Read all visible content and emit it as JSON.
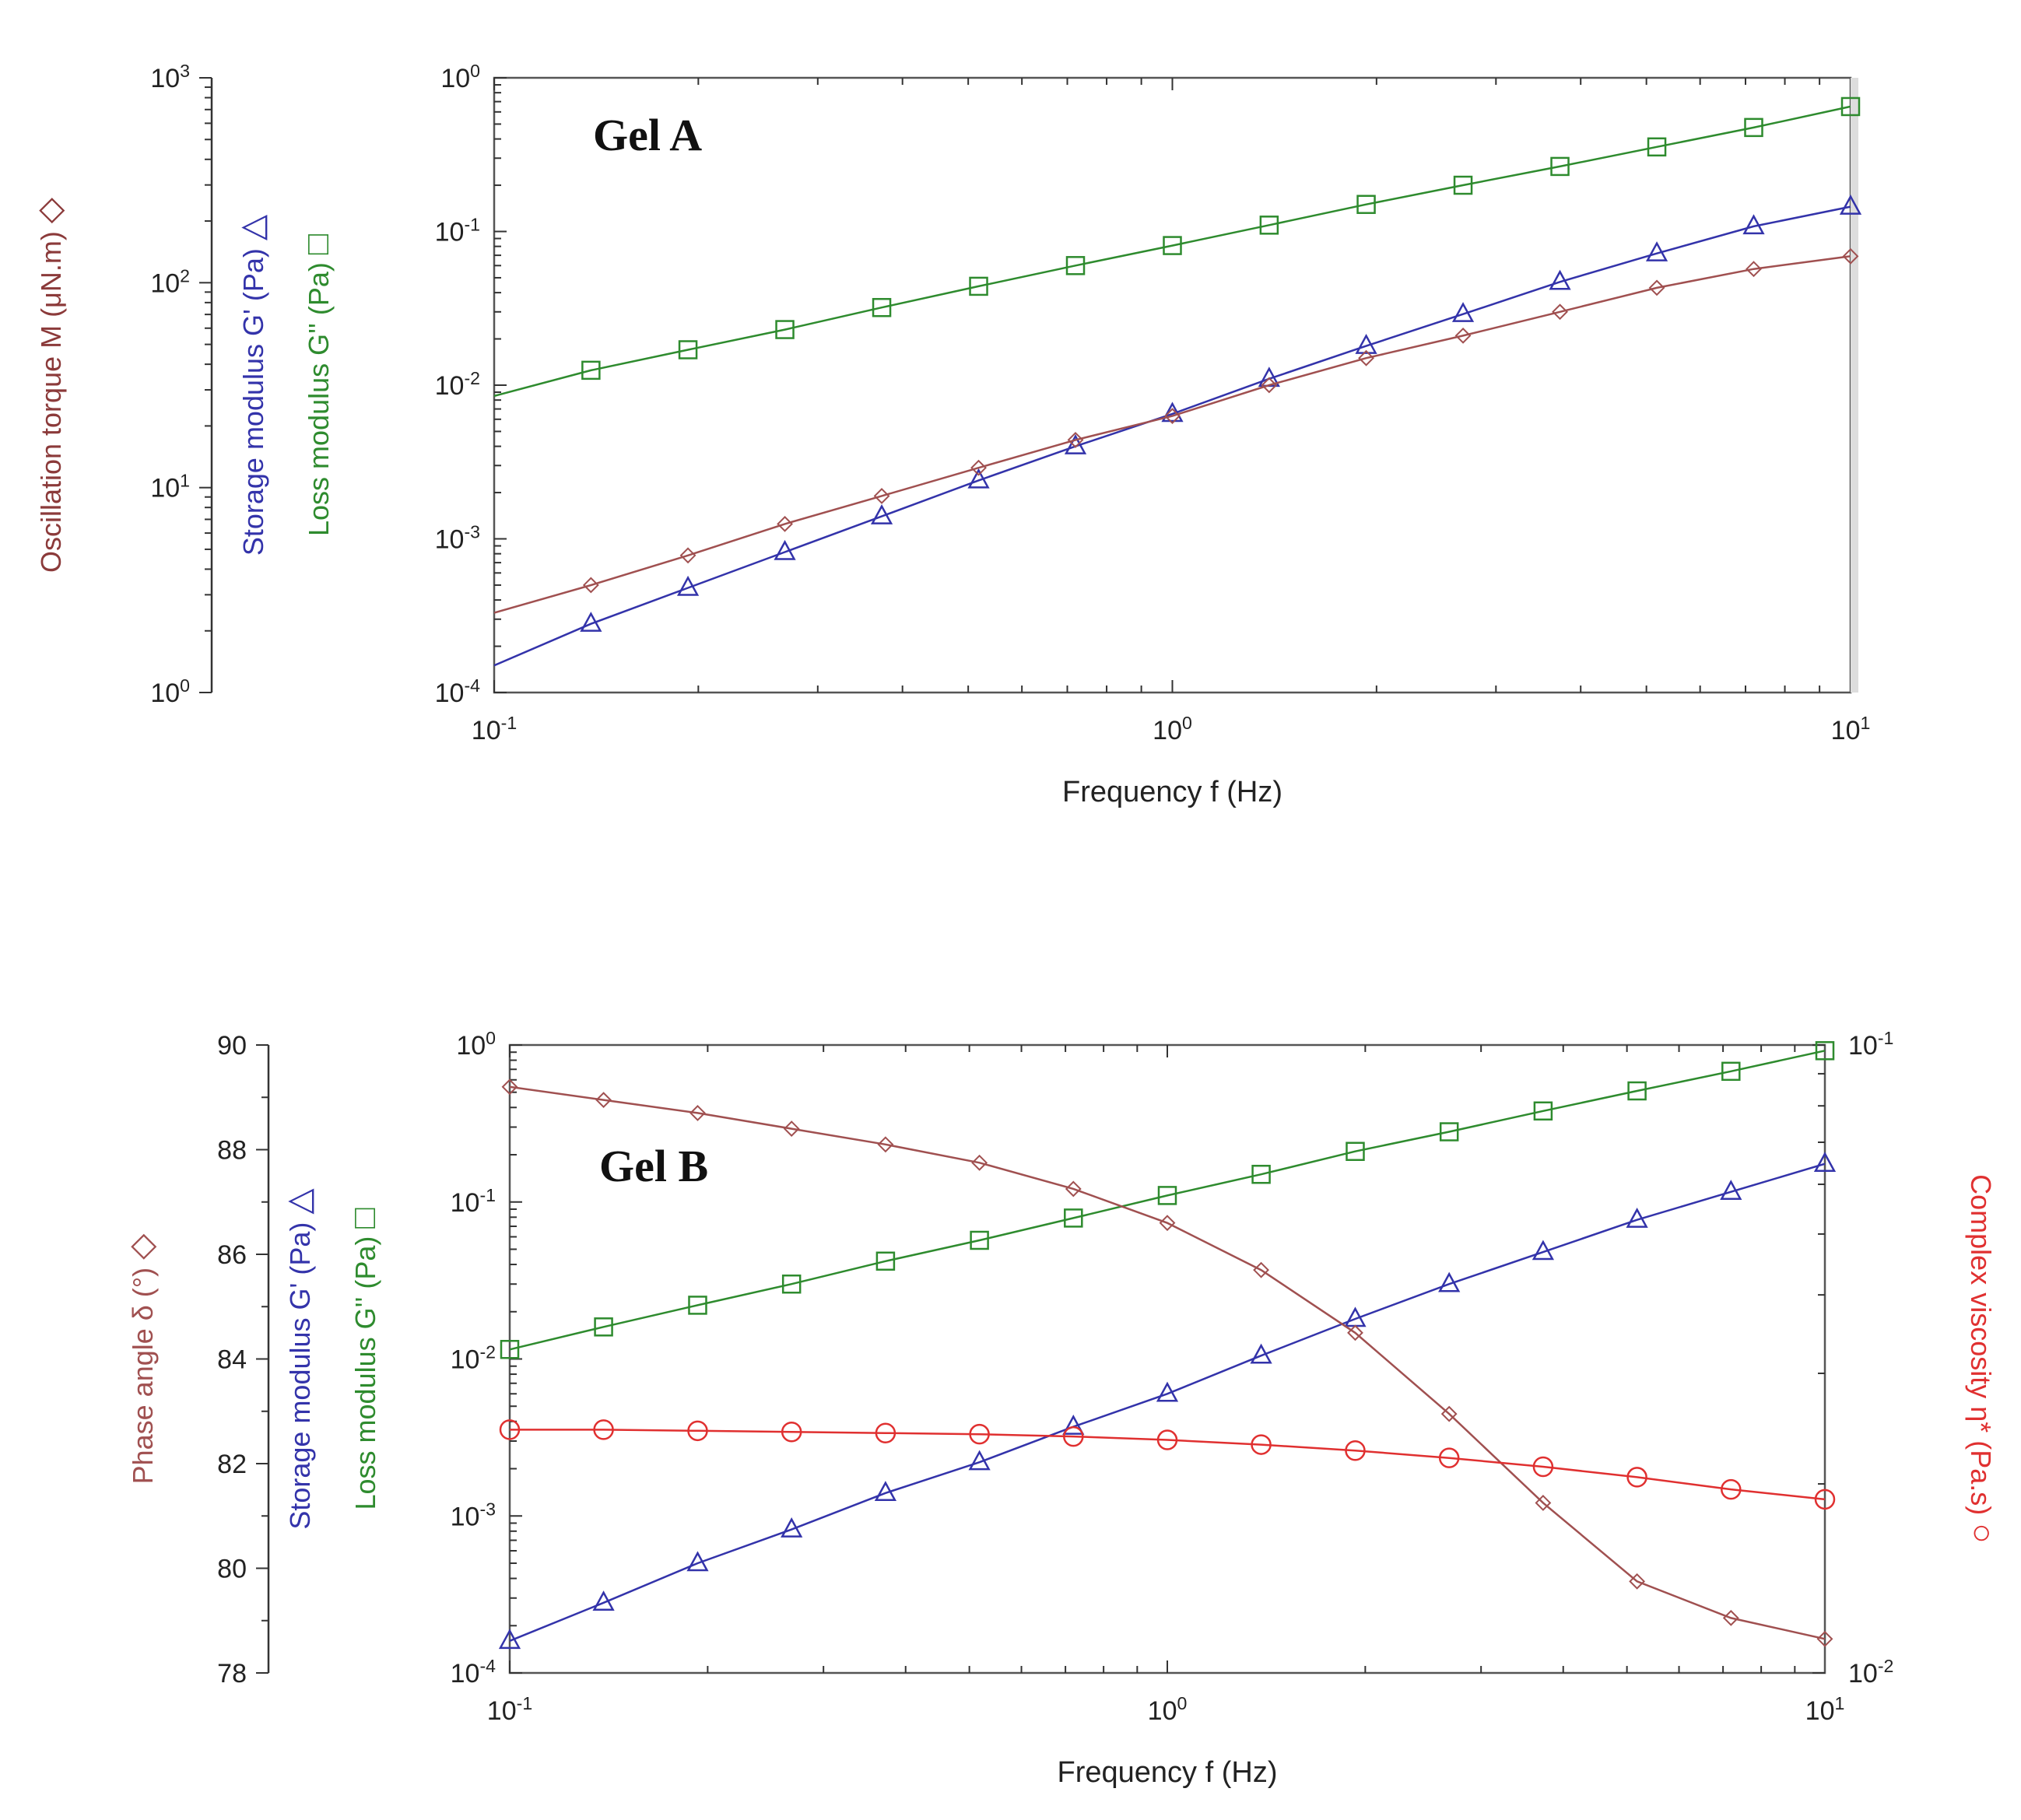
{
  "chart_data": [
    {
      "type": "line",
      "title": "Gel A",
      "xlabel": "Frequency f (Hz)",
      "x_scale": "log",
      "xlim": [
        0.1,
        10
      ],
      "x_ticks": [
        {
          "value": 0.1,
          "base": "10",
          "exp": "-1"
        },
        {
          "value": 1,
          "base": "10",
          "exp": "0"
        },
        {
          "value": 10,
          "base": "10",
          "exp": "1"
        }
      ],
      "axes": [
        {
          "id": "torque",
          "side": "left-outer",
          "scale": "log",
          "ylim": [
            1,
            1000
          ],
          "label": "Oscillation torque M (μN.m)",
          "symbol": "◇",
          "color": "#8b3a3a",
          "ticks": [
            {
              "value": 1,
              "base": "10",
              "exp": "0"
            },
            {
              "value": 10,
              "base": "10",
              "exp": "1"
            },
            {
              "value": 100,
              "base": "10",
              "exp": "2"
            },
            {
              "value": 1000,
              "base": "10",
              "exp": "3"
            }
          ]
        },
        {
          "id": "modulus",
          "side": "left-inner",
          "scale": "log",
          "ylim": [
            0.0001,
            1
          ],
          "labels": [
            {
              "text": "Storage modulus G' (Pa)",
              "symbol": "△",
              "color": "#3333aa"
            },
            {
              "text": "Loss modulus G'' (Pa)",
              "symbol": "□",
              "color": "#2e8b2e"
            }
          ],
          "ticks": [
            {
              "value": 0.0001,
              "base": "10",
              "exp": "-4"
            },
            {
              "value": 0.001,
              "base": "10",
              "exp": "-3"
            },
            {
              "value": 0.01,
              "base": "10",
              "exp": "-2"
            },
            {
              "value": 0.1,
              "base": "10",
              "exp": "-1"
            },
            {
              "value": 1,
              "base": "10",
              "exp": "0"
            }
          ]
        }
      ],
      "series": [
        {
          "name": "Loss modulus G''",
          "axis": "modulus",
          "color": "#2e8b2e",
          "marker": "square",
          "x": [
            0.1,
            0.1389,
            0.1931,
            0.2683,
            0.3728,
            0.518,
            0.7197,
            1.0,
            1.389,
            1.931,
            2.683,
            3.728,
            5.18,
            7.197,
            10.0
          ],
          "values": [
            0.0085,
            0.0125,
            0.017,
            0.023,
            0.032,
            0.044,
            0.06,
            0.081,
            0.11,
            0.15,
            0.2,
            0.265,
            0.355,
            0.475,
            0.65
          ]
        },
        {
          "name": "Storage modulus G'",
          "axis": "modulus",
          "color": "#3333aa",
          "marker": "triangle",
          "x": [
            0.1,
            0.1389,
            0.1931,
            0.2683,
            0.3728,
            0.518,
            0.7197,
            1.0,
            1.389,
            1.931,
            2.683,
            3.728,
            5.18,
            7.197,
            10.0
          ],
          "values": [
            0.00015,
            0.00028,
            0.00048,
            0.00082,
            0.0014,
            0.0024,
            0.004,
            0.0065,
            0.011,
            0.018,
            0.029,
            0.047,
            0.072,
            0.108,
            0.145
          ]
        },
        {
          "name": "Oscillation torque M",
          "axis": "modulus",
          "color": "#a05050",
          "marker": "diamond",
          "x": [
            0.1,
            0.1389,
            0.1931,
            0.2683,
            0.3728,
            0.518,
            0.7197,
            1.0,
            1.389,
            1.931,
            2.683,
            3.728,
            5.18,
            7.197,
            10.0
          ],
          "values": [
            0.00033,
            0.0005,
            0.00078,
            0.00125,
            0.0019,
            0.0029,
            0.0044,
            0.0063,
            0.01,
            0.015,
            0.021,
            0.03,
            0.043,
            0.057,
            0.069
          ]
        }
      ]
    },
    {
      "type": "line",
      "title": "Gel B",
      "xlabel": "Frequency f (Hz)",
      "x_scale": "log",
      "xlim": [
        0.1,
        10
      ],
      "x_ticks": [
        {
          "value": 0.1,
          "base": "10",
          "exp": "-1"
        },
        {
          "value": 1,
          "base": "10",
          "exp": "0"
        },
        {
          "value": 10,
          "base": "10",
          "exp": "1"
        }
      ],
      "axes": [
        {
          "id": "phase",
          "side": "left-outer",
          "scale": "linear",
          "ylim": [
            78,
            90
          ],
          "label": "Phase angle δ (°)",
          "symbol": "◇",
          "color": "#a05050",
          "ticks": [
            {
              "value": 78,
              "text": "78"
            },
            {
              "value": 80,
              "text": "80"
            },
            {
              "value": 82,
              "text": "82"
            },
            {
              "value": 84,
              "text": "84"
            },
            {
              "value": 86,
              "text": "86"
            },
            {
              "value": 88,
              "text": "88"
            },
            {
              "value": 90,
              "text": "90"
            }
          ]
        },
        {
          "id": "modulus",
          "side": "left-inner",
          "scale": "log",
          "ylim": [
            0.0001,
            1
          ],
          "labels": [
            {
              "text": "Storage modulus G' (Pa)",
              "symbol": "△",
              "color": "#3333aa"
            },
            {
              "text": "Loss modulus G'' (Pa)",
              "symbol": "□",
              "color": "#2e8b2e"
            }
          ],
          "ticks": [
            {
              "value": 0.0001,
              "base": "10",
              "exp": "-4"
            },
            {
              "value": 0.001,
              "base": "10",
              "exp": "-3"
            },
            {
              "value": 0.01,
              "base": "10",
              "exp": "-2"
            },
            {
              "value": 0.1,
              "base": "10",
              "exp": "-1"
            },
            {
              "value": 1,
              "base": "10",
              "exp": "0"
            }
          ]
        },
        {
          "id": "viscosity",
          "side": "right",
          "scale": "log",
          "ylim": [
            0.01,
            0.1
          ],
          "label": "Complex viscosity η* (Pa.s)",
          "symbol": "○",
          "color": "#e03030",
          "ticks": [
            {
              "value": 0.01,
              "base": "10",
              "exp": "-2"
            },
            {
              "value": 0.1,
              "base": "10",
              "exp": "-1"
            }
          ]
        }
      ],
      "series": [
        {
          "name": "Loss modulus G''",
          "axis": "modulus",
          "color": "#2e8b2e",
          "marker": "square",
          "x": [
            0.1,
            0.1389,
            0.1931,
            0.2683,
            0.3728,
            0.518,
            0.7197,
            1.0,
            1.389,
            1.931,
            2.683,
            3.728,
            5.18,
            7.197,
            10.0
          ],
          "values": [
            0.0115,
            0.016,
            0.022,
            0.03,
            0.042,
            0.057,
            0.079,
            0.11,
            0.15,
            0.21,
            0.28,
            0.38,
            0.51,
            0.68,
            0.92
          ]
        },
        {
          "name": "Storage modulus G'",
          "axis": "modulus",
          "color": "#3333aa",
          "marker": "triangle",
          "x": [
            0.1,
            0.1389,
            0.1931,
            0.2683,
            0.3728,
            0.518,
            0.7197,
            1.0,
            1.389,
            1.931,
            2.683,
            3.728,
            5.18,
            7.197,
            10.0
          ],
          "values": [
            0.00016,
            0.00028,
            0.0005,
            0.00082,
            0.0014,
            0.0022,
            0.0037,
            0.006,
            0.0105,
            0.018,
            0.03,
            0.048,
            0.077,
            0.116,
            0.175
          ]
        },
        {
          "name": "Phase angle δ",
          "axis": "phase",
          "color": "#a05050",
          "marker": "diamond",
          "x": [
            0.1,
            0.1389,
            0.1931,
            0.2683,
            0.3728,
            0.518,
            0.7197,
            1.0,
            1.389,
            1.931,
            2.683,
            3.728,
            5.18,
            7.197,
            10.0
          ],
          "values": [
            89.2,
            88.95,
            88.7,
            88.4,
            88.1,
            87.75,
            87.25,
            86.6,
            85.7,
            84.5,
            82.95,
            81.25,
            79.75,
            79.05,
            78.65
          ]
        },
        {
          "name": "Complex viscosity η*",
          "axis": "viscosity",
          "color": "#e03030",
          "marker": "circle",
          "x": [
            0.1,
            0.1389,
            0.1931,
            0.2683,
            0.3728,
            0.518,
            0.7197,
            1.0,
            1.389,
            1.931,
            2.683,
            3.728,
            5.18,
            7.197,
            10.0
          ],
          "values": [
            0.0244,
            0.0244,
            0.0243,
            0.0242,
            0.0241,
            0.024,
            0.0238,
            0.0235,
            0.0231,
            0.0226,
            0.022,
            0.0213,
            0.0205,
            0.0196,
            0.0189
          ]
        }
      ]
    }
  ]
}
